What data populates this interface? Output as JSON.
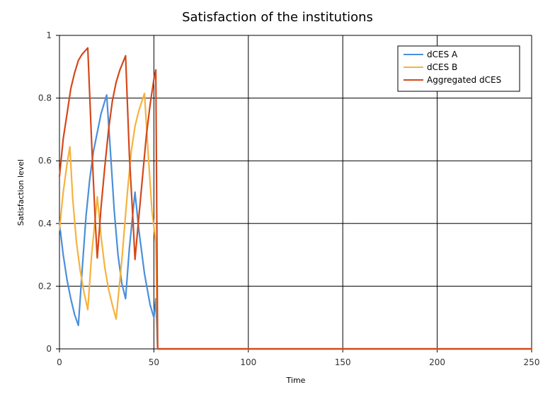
{
  "chart_data": {
    "type": "line",
    "title": "Satisfaction of the institutions",
    "xlabel": "Time",
    "ylabel": "Satisfaction level",
    "xlim": [
      0,
      250
    ],
    "ylim": [
      0,
      1
    ],
    "x_ticks": [
      0,
      50,
      100,
      150,
      200,
      250
    ],
    "y_ticks": [
      0,
      0.2,
      0.4,
      0.6,
      0.8,
      1
    ],
    "x_tick_labels": [
      "0",
      "50",
      "100",
      "150",
      "200",
      "250"
    ],
    "y_tick_labels": [
      "0",
      "0.2",
      "0.4",
      "0.6",
      "0.8",
      "1"
    ],
    "grid": true,
    "legend_position": "top-right",
    "series": [
      {
        "name": "dCES A",
        "color": "#4a8fdc",
        "points": [
          [
            0,
            0.4
          ],
          [
            2,
            0.3
          ],
          [
            4,
            0.22
          ],
          [
            6,
            0.16
          ],
          [
            8,
            0.11
          ],
          [
            10,
            0.075
          ],
          [
            12,
            0.25
          ],
          [
            14,
            0.42
          ],
          [
            16,
            0.54
          ],
          [
            18,
            0.63
          ],
          [
            20,
            0.69
          ],
          [
            22,
            0.75
          ],
          [
            25,
            0.81
          ],
          [
            27,
            0.63
          ],
          [
            29,
            0.44
          ],
          [
            31,
            0.3
          ],
          [
            33,
            0.21
          ],
          [
            35,
            0.16
          ],
          [
            37,
            0.32
          ],
          [
            40,
            0.5
          ],
          [
            42,
            0.38
          ],
          [
            45,
            0.24
          ],
          [
            48,
            0.14
          ],
          [
            50,
            0.1
          ],
          [
            51,
            0.16
          ],
          [
            52,
            0
          ],
          [
            250,
            0
          ]
        ]
      },
      {
        "name": "dCES B",
        "color": "#f6b23e",
        "points": [
          [
            0,
            0.38
          ],
          [
            2,
            0.5
          ],
          [
            4,
            0.59
          ],
          [
            5.5,
            0.645
          ],
          [
            7,
            0.48
          ],
          [
            9,
            0.34
          ],
          [
            11,
            0.25
          ],
          [
            13,
            0.18
          ],
          [
            15,
            0.125
          ],
          [
            17,
            0.3
          ],
          [
            19,
            0.42
          ],
          [
            20,
            0.485
          ],
          [
            22,
            0.36
          ],
          [
            24,
            0.26
          ],
          [
            26,
            0.19
          ],
          [
            28,
            0.14
          ],
          [
            30,
            0.095
          ],
          [
            33,
            0.28
          ],
          [
            36,
            0.5
          ],
          [
            38,
            0.63
          ],
          [
            40,
            0.71
          ],
          [
            42,
            0.76
          ],
          [
            45,
            0.815
          ],
          [
            47,
            0.62
          ],
          [
            49,
            0.44
          ],
          [
            51,
            0.34
          ],
          [
            52,
            0
          ],
          [
            250,
            0
          ]
        ]
      },
      {
        "name": "Aggregated dCES",
        "color": "#d4481a",
        "points": [
          [
            0,
            0.55
          ],
          [
            2,
            0.67
          ],
          [
            4,
            0.75
          ],
          [
            6,
            0.83
          ],
          [
            8,
            0.88
          ],
          [
            10,
            0.92
          ],
          [
            12,
            0.94
          ],
          [
            15,
            0.96
          ],
          [
            17,
            0.66
          ],
          [
            19,
            0.4
          ],
          [
            20,
            0.29
          ],
          [
            22,
            0.45
          ],
          [
            24,
            0.58
          ],
          [
            26,
            0.7
          ],
          [
            28,
            0.79
          ],
          [
            30,
            0.85
          ],
          [
            32,
            0.89
          ],
          [
            35,
            0.935
          ],
          [
            37,
            0.62
          ],
          [
            39,
            0.4
          ],
          [
            40,
            0.285
          ],
          [
            42,
            0.42
          ],
          [
            44,
            0.55
          ],
          [
            46,
            0.68
          ],
          [
            48,
            0.78
          ],
          [
            50,
            0.86
          ],
          [
            51,
            0.89
          ],
          [
            52,
            0
          ],
          [
            250,
            0
          ]
        ]
      }
    ]
  }
}
